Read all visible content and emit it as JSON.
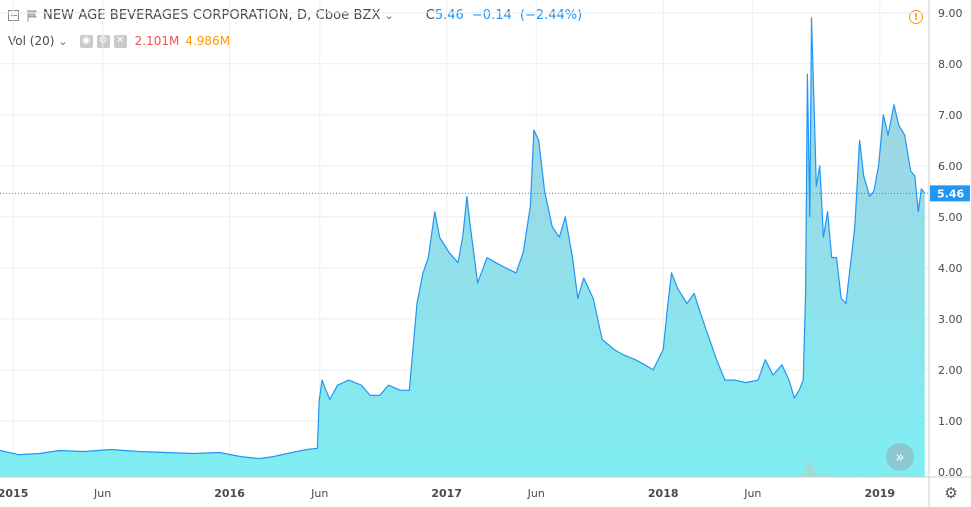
{
  "header": {
    "title": "NEW AGE BEVERAGES CORPORATION, D, Cboe BZX",
    "quote_close_prefix": "C",
    "quote_close": "5.46",
    "quote_change": "−0.14",
    "quote_change_pct": "(−2.44%)",
    "volume_label": "Vol (20)",
    "volume_value": "2.101M",
    "volume_ma": "4.986M",
    "price_badge": "5.46"
  },
  "colors": {
    "line": "#2196f3",
    "area_top": "#a9cfe0",
    "area_bottom": "#7eeef2",
    "volume": "#9fdcd8",
    "price_badge": "#2196f3",
    "grid": "#eeeeee",
    "accent_down": "#ef5350",
    "accent_ma": "#ff9800"
  },
  "icons": [
    "collapse-icon",
    "flag-icon",
    "chevron-down-icon",
    "eye-icon",
    "settings-icon",
    "close-icon",
    "alert-icon",
    "scroll-right-icon",
    "gear-icon"
  ],
  "chart_data": {
    "type": "area",
    "title": "NEW AGE BEVERAGES CORPORATION, D, Cboe BZX",
    "xlabel": "",
    "ylabel": "",
    "grid": true,
    "ylim": [
      -0.1,
      9.25
    ],
    "y_ticks": [
      "0.00",
      "1.00",
      "2.00",
      "3.00",
      "4.00",
      "5.00",
      "6.00",
      "7.00",
      "8.00",
      "9.00"
    ],
    "x_ticks": [
      {
        "date": "2015-01-01",
        "label": "2015"
      },
      {
        "date": "2015-06-01",
        "label": "Jun"
      },
      {
        "date": "2016-01-01",
        "label": "2016"
      },
      {
        "date": "2016-06-01",
        "label": "Jun"
      },
      {
        "date": "2017-01-01",
        "label": "2017"
      },
      {
        "date": "2017-06-01",
        "label": "Jun"
      },
      {
        "date": "2018-01-01",
        "label": "2018"
      },
      {
        "date": "2018-06-01",
        "label": "Jun"
      },
      {
        "date": "2019-01-01",
        "label": "2019"
      }
    ],
    "x_range": [
      "2014-12-10",
      "2019-03-25"
    ],
    "last_price": 5.46,
    "series": [
      {
        "points": [
          [
            "2014-12-10",
            0.42
          ],
          [
            "2015-01-10",
            0.34
          ],
          [
            "2015-02-15",
            0.36
          ],
          [
            "2015-03-20",
            0.42
          ],
          [
            "2015-05-01",
            0.4
          ],
          [
            "2015-06-15",
            0.44
          ],
          [
            "2015-08-01",
            0.4
          ],
          [
            "2015-09-15",
            0.38
          ],
          [
            "2015-11-01",
            0.36
          ],
          [
            "2015-12-15",
            0.38
          ],
          [
            "2016-01-20",
            0.3
          ],
          [
            "2016-02-20",
            0.26
          ],
          [
            "2016-03-15",
            0.3
          ],
          [
            "2016-04-15",
            0.38
          ],
          [
            "2016-05-10",
            0.44
          ],
          [
            "2016-05-28",
            0.46
          ],
          [
            "2016-05-31",
            1.4
          ],
          [
            "2016-06-05",
            1.8
          ],
          [
            "2016-06-08",
            1.7
          ],
          [
            "2016-06-18",
            1.42
          ],
          [
            "2016-07-01",
            1.7
          ],
          [
            "2016-07-20",
            1.8
          ],
          [
            "2016-08-10",
            1.7
          ],
          [
            "2016-08-25",
            1.5
          ],
          [
            "2016-09-10",
            1.5
          ],
          [
            "2016-09-25",
            1.7
          ],
          [
            "2016-10-15",
            1.6
          ],
          [
            "2016-10-30",
            1.6
          ],
          [
            "2016-11-05",
            2.4
          ],
          [
            "2016-11-12",
            3.3
          ],
          [
            "2016-11-22",
            3.9
          ],
          [
            "2016-12-01",
            4.2
          ],
          [
            "2016-12-12",
            5.1
          ],
          [
            "2016-12-20",
            4.6
          ],
          [
            "2017-01-05",
            4.3
          ],
          [
            "2017-01-20",
            4.1
          ],
          [
            "2017-01-28",
            4.6
          ],
          [
            "2017-02-04",
            5.4
          ],
          [
            "2017-02-10",
            4.8
          ],
          [
            "2017-02-22",
            3.7
          ],
          [
            "2017-03-10",
            4.2
          ],
          [
            "2017-03-25",
            4.1
          ],
          [
            "2017-04-10",
            4.0
          ],
          [
            "2017-04-28",
            3.9
          ],
          [
            "2017-05-10",
            4.3
          ],
          [
            "2017-05-22",
            5.2
          ],
          [
            "2017-05-28",
            6.7
          ],
          [
            "2017-06-05",
            6.5
          ],
          [
            "2017-06-15",
            5.5
          ],
          [
            "2017-06-28",
            4.8
          ],
          [
            "2017-07-10",
            4.6
          ],
          [
            "2017-07-20",
            5.0
          ],
          [
            "2017-08-01",
            4.2
          ],
          [
            "2017-08-10",
            3.4
          ],
          [
            "2017-08-20",
            3.8
          ],
          [
            "2017-09-05",
            3.4
          ],
          [
            "2017-09-20",
            2.6
          ],
          [
            "2017-10-10",
            2.4
          ],
          [
            "2017-10-25",
            2.3
          ],
          [
            "2017-11-15",
            2.2
          ],
          [
            "2017-12-01",
            2.1
          ],
          [
            "2017-12-15",
            2.0
          ],
          [
            "2018-01-01",
            2.4
          ],
          [
            "2018-01-08",
            3.2
          ],
          [
            "2018-01-15",
            3.9
          ],
          [
            "2018-01-25",
            3.6
          ],
          [
            "2018-02-10",
            3.3
          ],
          [
            "2018-02-22",
            3.5
          ],
          [
            "2018-03-05",
            3.1
          ],
          [
            "2018-03-20",
            2.6
          ],
          [
            "2018-04-01",
            2.2
          ],
          [
            "2018-04-15",
            1.8
          ],
          [
            "2018-05-01",
            1.8
          ],
          [
            "2018-05-20",
            1.75
          ],
          [
            "2018-06-10",
            1.8
          ],
          [
            "2018-06-22",
            2.2
          ],
          [
            "2018-07-05",
            1.9
          ],
          [
            "2018-07-20",
            2.1
          ],
          [
            "2018-08-01",
            1.8
          ],
          [
            "2018-08-10",
            1.45
          ],
          [
            "2018-08-18",
            1.6
          ],
          [
            "2018-08-25",
            1.8
          ],
          [
            "2018-08-29",
            3.5
          ],
          [
            "2018-09-01",
            7.8
          ],
          [
            "2018-09-05",
            5.0
          ],
          [
            "2018-09-08",
            8.9
          ],
          [
            "2018-09-12",
            7.3
          ],
          [
            "2018-09-16",
            5.6
          ],
          [
            "2018-09-22",
            6.0
          ],
          [
            "2018-09-28",
            4.6
          ],
          [
            "2018-10-05",
            5.1
          ],
          [
            "2018-10-12",
            4.2
          ],
          [
            "2018-10-20",
            4.2
          ],
          [
            "2018-10-28",
            3.4
          ],
          [
            "2018-11-05",
            3.3
          ],
          [
            "2018-11-12",
            4.0
          ],
          [
            "2018-11-20",
            4.8
          ],
          [
            "2018-11-28",
            6.5
          ],
          [
            "2018-12-05",
            5.8
          ],
          [
            "2018-12-15",
            5.4
          ],
          [
            "2018-12-22",
            5.5
          ],
          [
            "2018-12-30",
            6.0
          ],
          [
            "2019-01-07",
            7.0
          ],
          [
            "2019-01-15",
            6.6
          ],
          [
            "2019-01-25",
            7.2
          ],
          [
            "2019-02-02",
            6.8
          ],
          [
            "2019-02-12",
            6.6
          ],
          [
            "2019-02-22",
            5.9
          ],
          [
            "2019-03-01",
            5.8
          ],
          [
            "2019-03-07",
            5.1
          ],
          [
            "2019-03-12",
            5.55
          ],
          [
            "2019-03-18",
            5.46
          ]
        ]
      }
    ],
    "volume": [
      [
        "2018-08-15",
        0.1
      ],
      [
        "2018-08-22",
        0.2
      ],
      [
        "2018-08-27",
        0.55
      ],
      [
        "2018-08-30",
        1.05
      ],
      [
        "2018-09-03",
        0.85
      ],
      [
        "2018-09-06",
        1.45
      ],
      [
        "2018-09-09",
        0.9
      ],
      [
        "2018-09-13",
        0.55
      ],
      [
        "2018-09-18",
        0.35
      ],
      [
        "2018-09-25",
        0.25
      ],
      [
        "2018-10-05",
        0.2
      ],
      [
        "2018-10-20",
        0.1
      ],
      [
        "2018-11-10",
        0.12
      ],
      [
        "2018-11-25",
        0.25
      ],
      [
        "2018-12-05",
        0.15
      ],
      [
        "2018-12-20",
        0.1
      ],
      [
        "2019-01-08",
        0.25
      ],
      [
        "2019-01-20",
        0.2
      ],
      [
        "2019-02-05",
        0.25
      ],
      [
        "2019-02-20",
        0.15
      ],
      [
        "2019-03-05",
        0.1
      ]
    ]
  }
}
